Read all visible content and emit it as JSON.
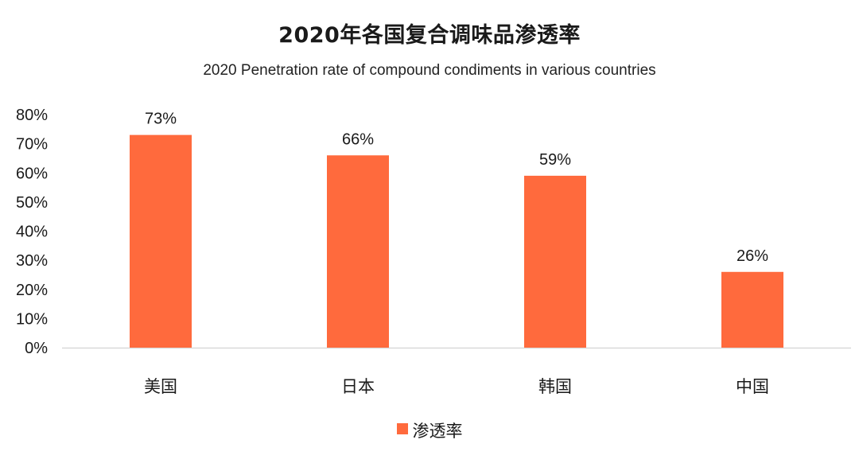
{
  "chart_data": {
    "type": "bar",
    "title": "2020年各国复合调味品渗透率",
    "subtitle": "2020 Penetration rate of compound condiments in various countries",
    "categories": [
      "美国",
      "日本",
      "韩国",
      "中国"
    ],
    "series": [
      {
        "name": "渗透率",
        "values": [
          73,
          66,
          59,
          26
        ],
        "labels": [
          "73%",
          "66%",
          "59%",
          "26%"
        ],
        "color": "#ff6a3d"
      }
    ],
    "yticks": [
      "0%",
      "10%",
      "20%",
      "30%",
      "40%",
      "50%",
      "60%",
      "70%",
      "80%"
    ],
    "ylim": [
      0,
      80
    ],
    "grid": false,
    "legend_position": "bottom"
  }
}
